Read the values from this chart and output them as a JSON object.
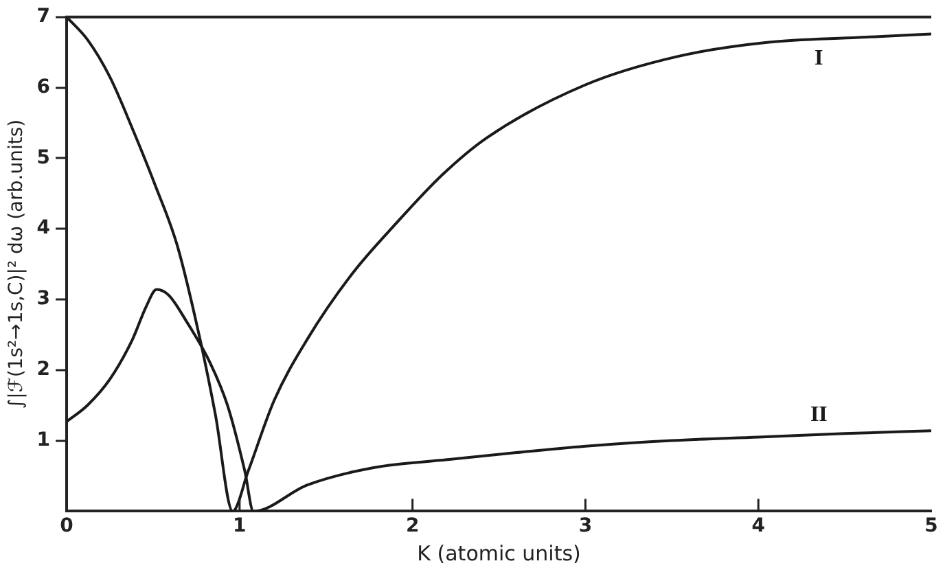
{
  "chart_data": {
    "type": "line",
    "xlabel": "K (atomic units)",
    "ylabel": "∫|ℱ(1s²→1s,C)|² dω (arb.units)",
    "xlim": [
      0,
      5
    ],
    "ylim": [
      0,
      7
    ],
    "xticks": [
      0,
      1,
      2,
      3,
      4,
      5
    ],
    "yticks": [
      1,
      2,
      3,
      4,
      5,
      6,
      7
    ],
    "series": [
      {
        "name": "I",
        "color": "#1a1a1a",
        "x": [
          0,
          0.12,
          0.25,
          0.38,
          0.51,
          0.64,
          0.77,
          0.86,
          0.96,
          1.05,
          1.2,
          1.39,
          1.65,
          1.91,
          2.17,
          2.43,
          3.0,
          3.53,
          4.05,
          4.58,
          5.0
        ],
        "values": [
          7.0,
          6.68,
          6.15,
          5.42,
          4.63,
          3.76,
          2.45,
          1.37,
          0,
          0.57,
          1.57,
          2.43,
          3.36,
          4.09,
          4.76,
          5.29,
          6.04,
          6.44,
          6.64,
          6.71,
          6.76
        ]
      },
      {
        "name": "II",
        "color": "#1a1a1a",
        "x": [
          0,
          0.12,
          0.25,
          0.38,
          0.46,
          0.52,
          0.59,
          0.69,
          0.83,
          0.93,
          1.03,
          1.08,
          1.39,
          1.78,
          2.2,
          2.6,
          3.0,
          3.5,
          4.0,
          4.5,
          5.0
        ],
        "values": [
          1.27,
          1.5,
          1.87,
          2.43,
          2.9,
          3.14,
          3.06,
          2.7,
          2.1,
          1.5,
          0.57,
          0,
          0.37,
          0.62,
          0.73,
          0.83,
          0.92,
          1.0,
          1.05,
          1.1,
          1.14
        ]
      }
    ]
  }
}
